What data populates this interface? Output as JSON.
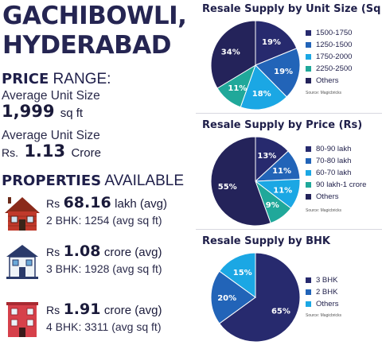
{
  "header": {
    "line1": "GACHIBOWLI,",
    "line2": "HYDERABAD"
  },
  "price_range": {
    "heading_bold": "PRICE",
    "heading_rest": "RANGE:",
    "unit_size_label": "Average Unit Size",
    "unit_size_value": "1,999",
    "unit_size_unit": "sq ft",
    "price_label": "Average Unit Size",
    "price_prefix": "Rs.",
    "price_value": "1.13",
    "price_unit": "Crore"
  },
  "properties": {
    "heading_bold": "PROPERTIES",
    "heading_rest": "AVAILABLE",
    "items": [
      {
        "prefix": "Rs",
        "value": "68.16",
        "unit": "lakh (avg)",
        "bhk": "2 BHK: 1254 (avg sq ft)",
        "icon": "brick-house-icon"
      },
      {
        "prefix": "Rs",
        "value": "1.08",
        "unit": "crore (avg)",
        "bhk": "3 BHK: 1928 (avg sq ft)",
        "icon": "villa-icon"
      },
      {
        "prefix": "Rs",
        "value": "1.91",
        "unit": "crore (avg)",
        "bhk": "4 BHK: 3311 (avg sq ft)",
        "icon": "apartment-icon"
      }
    ]
  },
  "colors": {
    "navy": "#272a6e",
    "blue": "#2264b8",
    "sky": "#1ba7e4",
    "teal": "#20a89a",
    "darknavy": "#24235a"
  },
  "chart_data": [
    {
      "type": "pie",
      "title": "Resale Supply by Unit Size (Sq ft)",
      "source": "Source: Magicbricks",
      "slices": [
        {
          "label": "1500-1750",
          "value": 19,
          "text": "19%",
          "color": "#272a6e"
        },
        {
          "label": "1250-1500",
          "value": 19,
          "text": "19%",
          "color": "#2264b8"
        },
        {
          "label": "1750-2000",
          "value": 18,
          "text": "18%",
          "color": "#1ba7e4"
        },
        {
          "label": "2250-2500",
          "value": 11,
          "text": "11%",
          "color": "#20a89a"
        },
        {
          "label": "Others",
          "value": 34,
          "text": "34%",
          "color": "#24235a"
        }
      ]
    },
    {
      "type": "pie",
      "title": "Resale Supply by Price (Rs)",
      "source": "Source: Magicbricks",
      "slices": [
        {
          "label": "80-90 lakh",
          "value": 13,
          "text": "13%",
          "color": "#272a6e"
        },
        {
          "label": "70-80 lakh",
          "value": 11,
          "text": "11%",
          "color": "#2264b8"
        },
        {
          "label": "60-70 lakh",
          "value": 11,
          "text": "11%",
          "color": "#1ba7e4"
        },
        {
          "label": "90 lakh-1 crore",
          "value": 9,
          "text": "9%",
          "color": "#20a89a"
        },
        {
          "label": "Others",
          "value": 55,
          "text": "55%",
          "color": "#24235a"
        }
      ]
    },
    {
      "type": "pie",
      "title": "Resale Supply by BHK",
      "source": "Source: Magicbricks",
      "slices": [
        {
          "label": "3 BHK",
          "value": 65,
          "text": "65%",
          "color": "#272a6e"
        },
        {
          "label": "2 BHK",
          "value": 20,
          "text": "20%",
          "color": "#2264b8"
        },
        {
          "label": "Others",
          "value": 15,
          "text": "15%",
          "color": "#1ba7e4"
        }
      ]
    }
  ]
}
